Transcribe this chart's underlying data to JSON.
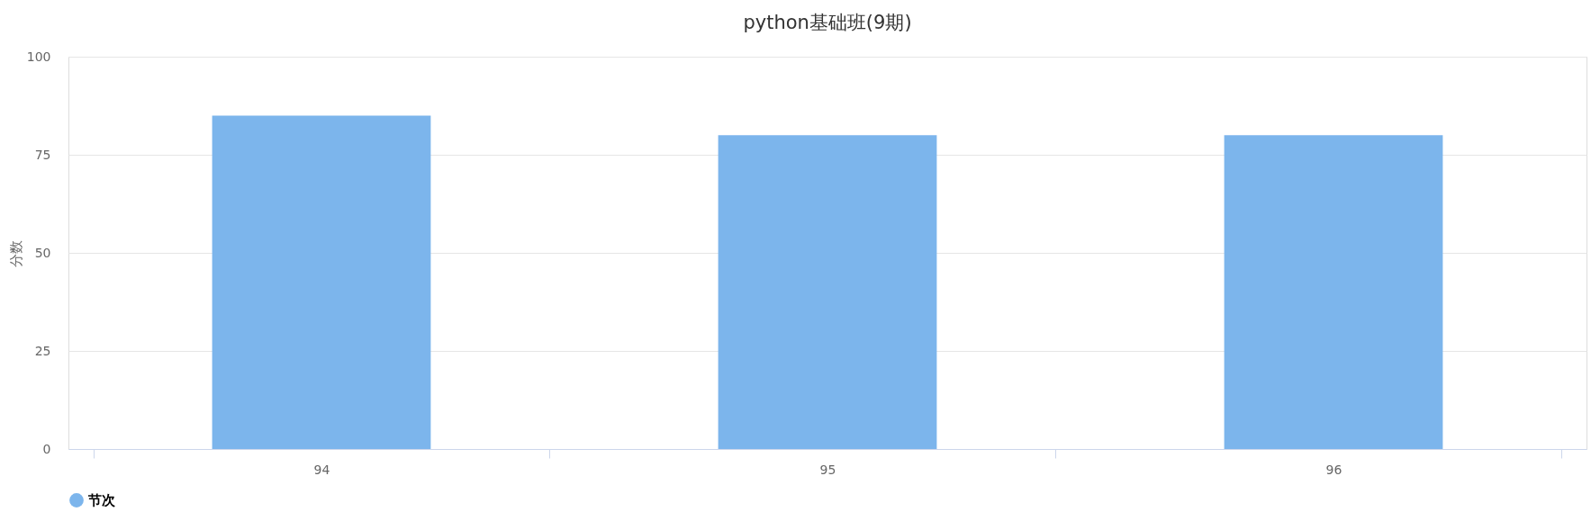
{
  "chart_data": {
    "type": "bar",
    "title": "python基础班(9期)",
    "ylabel": "分数",
    "categories": [
      "94",
      "95",
      "96"
    ],
    "series": [
      {
        "name": "节次",
        "color": "#7cb5ec",
        "values": [
          85,
          80,
          80
        ]
      }
    ],
    "ylim": [
      0,
      100
    ],
    "yticks": [
      0,
      25,
      50,
      75,
      100
    ],
    "grid": "y",
    "legend": "bottom"
  }
}
